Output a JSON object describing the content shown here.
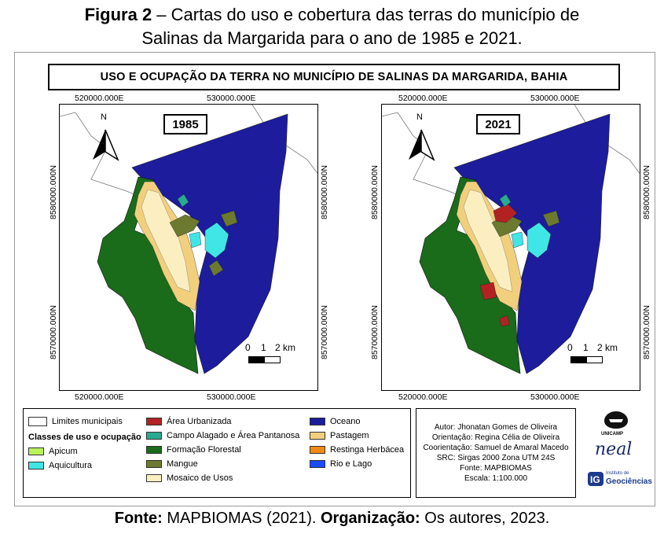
{
  "caption": {
    "bold": "Figura 2",
    "text": " – Cartas do uso e cobertura das terras do município de",
    "line2": "Salinas da Margarida para o ano de 1985 e 2021."
  },
  "map_title": "USO E OCUPAÇÃO DA TERRA NO MUNICÍPIO DE SALINAS DA MARGARIDA, BAHIA",
  "maps": [
    {
      "year": "1985",
      "top_coords": [
        "520000.000E",
        "530000.000E"
      ],
      "bottom_coords": [
        "520000.000E",
        "530000.000E"
      ],
      "left_coords": [
        "8580000.000N",
        "8570000.000N"
      ],
      "right_coords": [
        "8580000.000N",
        "8570000.000N"
      ],
      "north": "N",
      "scale": {
        "l0": "0",
        "l1": "1",
        "l2": "2 km"
      }
    },
    {
      "year": "2021",
      "top_coords": [
        "520000.000E",
        "530000.000E"
      ],
      "bottom_coords": [
        "520000.000E",
        "530000.000E"
      ],
      "left_coords": [
        "8580000.000N",
        "8570000.000N"
      ],
      "right_coords": [
        "8580000.000N",
        "8570000.000N"
      ],
      "north": "N",
      "scale": {
        "l0": "0",
        "l1": "1",
        "l2": "2 km"
      }
    }
  ],
  "legend": {
    "limits": "Limites municipais",
    "classes_title": "Classes de uso e ocupação",
    "items": [
      {
        "label": "Apicum",
        "color": "#b9f25a"
      },
      {
        "label": "Aquicultura",
        "color": "#40e6e6"
      },
      {
        "label": "Área Urbanizada",
        "color": "#b22222"
      },
      {
        "label": "Campo Alagado e Área Pantanosa",
        "color": "#2aaa90"
      },
      {
        "label": "Formação Florestal",
        "color": "#1a6b1a"
      },
      {
        "label": "Mangue",
        "color": "#6b7a2e"
      },
      {
        "label": "Mosaico de Usos",
        "color": "#fbefc2"
      },
      {
        "label": "Oceano",
        "color": "#1c1c9c"
      },
      {
        "label": "Pastagem",
        "color": "#f2cf7d"
      },
      {
        "label": "Restinga Herbácea",
        "color": "#f08a14"
      },
      {
        "label": "Rio e Lago",
        "color": "#1a4cff"
      }
    ]
  },
  "credits": [
    "Autor: Jhonatan Gomes de Oliveira",
    "Orientação: Regina Célia de Oliveira",
    "Coorientação: Samuel de Amaral Macedo",
    "SRC: Sirgas 2000 Zona UTM 24S",
    "Fonte: MAPBIOMAS",
    "Escala: 1:100.000"
  ],
  "logos": {
    "unicamp": "UNICAMP",
    "neal": "neal",
    "ig_top": "Instituto de",
    "ig_bottom": "Geociências"
  },
  "source": {
    "fonte_label": "Fonte:",
    "fonte_text": " MAPBIOMAS  (2021). ",
    "org_label": "Organização:",
    "org_text": " Os autores, 2023."
  }
}
